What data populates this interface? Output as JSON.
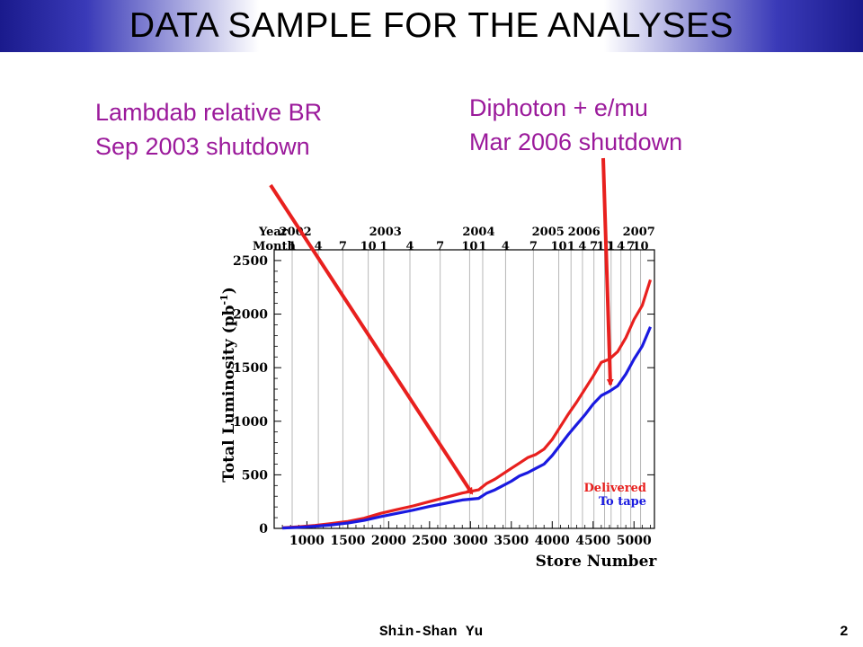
{
  "slide": {
    "title": "DATA SAMPLE FOR THE ANALYSES",
    "footer_author": "Shin-Shan Yu",
    "footer_page": "2"
  },
  "annotations": [
    {
      "line1": "Lambdab relative BR",
      "line2": "Sep 2003 shutdown"
    },
    {
      "line1": "Diphoton + e/mu",
      "line2": "Mar 2006 shutdown"
    }
  ],
  "colors": {
    "annotation_text": "#9b1a9b",
    "arrow": "#e8201e",
    "delivered": "#e8201e",
    "to_tape": "#1a1ae0",
    "title_bar": "#1a1a8c"
  },
  "chart_data": {
    "type": "line",
    "xlabel": "Store Number",
    "ylabel": "Total Luminosity (pb",
    "ylabel_sup": "-1",
    "xlim": [
      600,
      5250
    ],
    "ylim": [
      0,
      2600
    ],
    "x_ticks": [
      1000,
      1500,
      2000,
      2500,
      3000,
      3500,
      4000,
      4500,
      5000
    ],
    "y_ticks": [
      0,
      500,
      1000,
      1500,
      2000,
      2500
    ],
    "top_axis": {
      "year_label": "Year",
      "month_label": "Month",
      "years": [
        {
          "label": "2002",
          "x": 860
        },
        {
          "label": "2003",
          "x": 1960
        },
        {
          "label": "2004",
          "x": 3100
        },
        {
          "label": "2005",
          "x": 3950
        },
        {
          "label": "2006",
          "x": 4390
        },
        {
          "label": "2007",
          "x": 5060
        }
      ],
      "months": [
        {
          "label": "1",
          "x": 820
        },
        {
          "label": "4",
          "x": 1140
        },
        {
          "label": "7",
          "x": 1440
        },
        {
          "label": "10",
          "x": 1750
        },
        {
          "label": "1",
          "x": 1940
        },
        {
          "label": "4",
          "x": 2260
        },
        {
          "label": "7",
          "x": 2630
        },
        {
          "label": "10",
          "x": 2990
        },
        {
          "label": "1",
          "x": 3150
        },
        {
          "label": "4",
          "x": 3430
        },
        {
          "label": "7",
          "x": 3770
        },
        {
          "label": "10",
          "x": 4080
        },
        {
          "label": "1",
          "x": 4230
        },
        {
          "label": "4",
          "x": 4370
        },
        {
          "label": "7",
          "x": 4510
        },
        {
          "label": "10",
          "x": 4640
        },
        {
          "label": "1",
          "x": 4720
        },
        {
          "label": "4",
          "x": 4840
        },
        {
          "label": "7",
          "x": 4960
        },
        {
          "label": "10",
          "x": 5080
        }
      ]
    },
    "month_gridlines": [
      820,
      1140,
      1440,
      1750,
      1940,
      2260,
      2630,
      2990,
      3150,
      3430,
      3770,
      4080,
      4230,
      4370,
      4510,
      4640,
      4720,
      4840,
      4960,
      5080
    ],
    "legend": {
      "position": "bottom-right",
      "entries": [
        "Delivered",
        "To tape"
      ]
    },
    "series": [
      {
        "name": "Delivered",
        "x": [
          700,
          900,
          1100,
          1300,
          1500,
          1700,
          1900,
          2100,
          2300,
          2500,
          2700,
          2900,
          3100,
          3200,
          3300,
          3400,
          3500,
          3600,
          3700,
          3800,
          3900,
          4000,
          4100,
          4200,
          4300,
          4400,
          4500,
          4600,
          4700,
          4800,
          4900,
          5000,
          5100,
          5200
        ],
        "y": [
          5,
          15,
          28,
          45,
          65,
          95,
          140,
          175,
          210,
          250,
          290,
          330,
          360,
          420,
          460,
          510,
          560,
          610,
          660,
          690,
          740,
          830,
          950,
          1070,
          1180,
          1300,
          1420,
          1550,
          1580,
          1650,
          1780,
          1950,
          2080,
          2320
        ]
      },
      {
        "name": "To tape",
        "x": [
          700,
          900,
          1100,
          1300,
          1500,
          1700,
          1900,
          2100,
          2300,
          2500,
          2700,
          2900,
          3100,
          3200,
          3300,
          3400,
          3500,
          3600,
          3700,
          3800,
          3900,
          4000,
          4100,
          4200,
          4300,
          4400,
          4500,
          4600,
          4700,
          4800,
          4900,
          5000,
          5100,
          5200
        ],
        "y": [
          3,
          10,
          20,
          33,
          50,
          75,
          110,
          140,
          170,
          205,
          235,
          265,
          280,
          330,
          360,
          400,
          440,
          490,
          520,
          560,
          600,
          680,
          780,
          880,
          970,
          1060,
          1160,
          1240,
          1280,
          1330,
          1440,
          1580,
          1700,
          1880
        ]
      }
    ]
  }
}
